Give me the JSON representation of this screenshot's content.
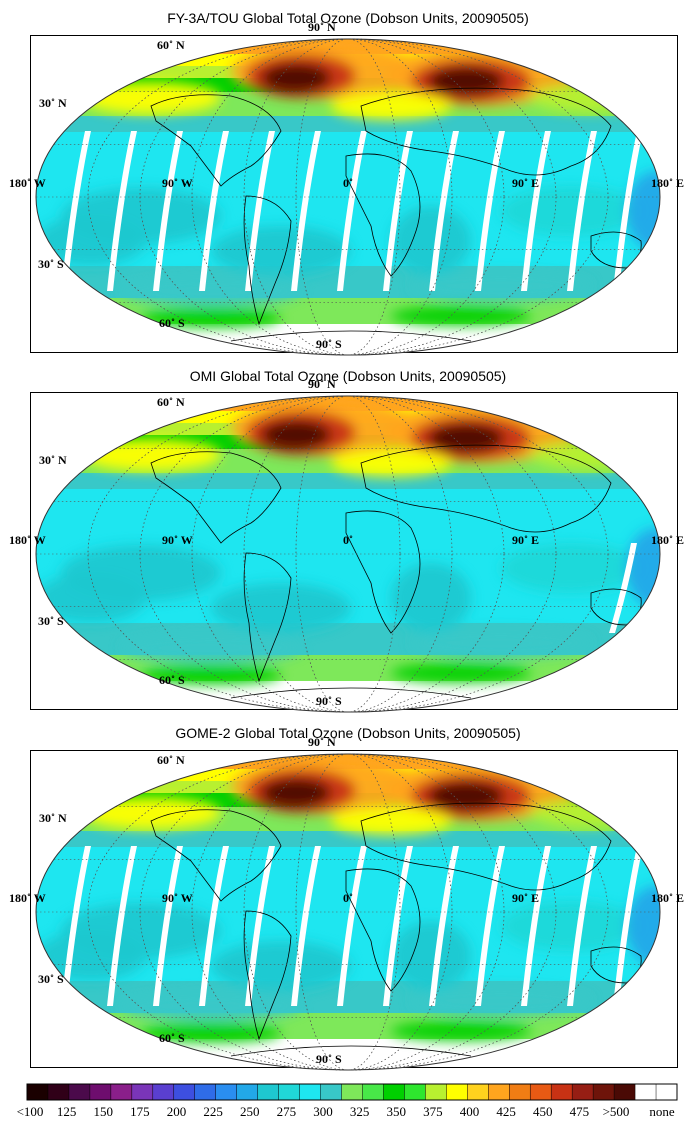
{
  "panels": [
    {
      "title": "FY-3A/TOU Global Total Ozone (Dobson Units, 20090505)",
      "gaps": "swath"
    },
    {
      "title": "OMI Global Total Ozone (Dobson Units, 20090505)",
      "gaps": "none"
    },
    {
      "title": "GOME-2 Global Total Ozone (Dobson Units, 20090505)",
      "gaps": "swath"
    }
  ],
  "graticule_labels": {
    "n90": "90˚ N",
    "n60": "60˚ N",
    "n30": "30˚ N",
    "w180": "180˚ W",
    "w90": "90˚ W",
    "zero": "0˚",
    "e90": "90˚ E",
    "e180": "180˚ E",
    "s30": "30˚ S",
    "s60": "60˚ S",
    "s90": "90˚ S"
  },
  "colorbar": {
    "colors": [
      "#1a0000",
      "#300018",
      "#4b0a4b",
      "#6e0d6e",
      "#8a1f8a",
      "#7a35b8",
      "#5a3fd0",
      "#3d4fe0",
      "#2f6ce8",
      "#2a8ef0",
      "#22a8e8",
      "#1ec8d0",
      "#20d8d8",
      "#1ee6f0",
      "#38c8c8",
      "#7ee85a",
      "#48e848",
      "#00d000",
      "#2ee62e",
      "#b8f030",
      "#ffff00",
      "#ffd21e",
      "#ffa51e",
      "#f07d14",
      "#e85a14",
      "#c83214",
      "#961e14",
      "#6e140a",
      "#4a0a05",
      "#ffffff",
      "#ffffff"
    ],
    "labels": [
      "<100",
      "125",
      "150",
      "175",
      "200",
      "225",
      "250",
      "275",
      "300",
      "325",
      "350",
      "375",
      "400",
      "425",
      "450",
      "475",
      ">500",
      "none"
    ]
  }
}
